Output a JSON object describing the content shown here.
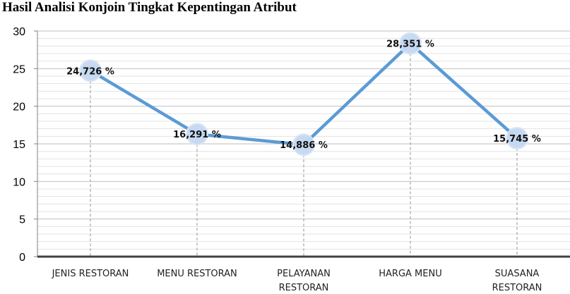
{
  "chart_data": {
    "type": "line",
    "title": "Hasil Analisi Konjoin Tingkat Kepentingan Atribut",
    "categories": [
      [
        "JENIS RESTORAN"
      ],
      [
        "MENU RESTORAN"
      ],
      [
        "PELAYANAN",
        "RESTORAN"
      ],
      [
        "HARGA MENU"
      ],
      [
        "SUASANA",
        "RESTORAN"
      ]
    ],
    "series": [
      {
        "values": [
          24.726,
          16.291,
          14.886,
          28.351,
          15.745
        ],
        "labels": [
          "24,726 %",
          "16,291 %",
          "14,886 %",
          "28,351 %",
          "15,745 %"
        ]
      }
    ],
    "yticks": [
      "0",
      "5",
      "10",
      "15",
      "20",
      "25",
      "30"
    ],
    "ylim": [
      0,
      30
    ],
    "grid": true,
    "colors": {
      "line": "#5b9bd5",
      "marker": "#c6d9f1",
      "grid": "#d0d0d0",
      "drop_line": "#a6a6a6",
      "axis": "#404040"
    }
  }
}
